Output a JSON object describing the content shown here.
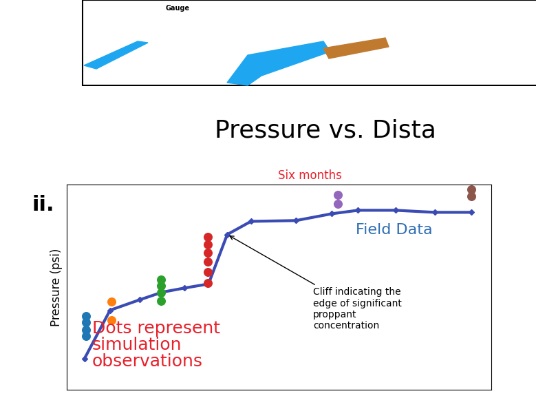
{
  "diagram": {
    "label": "Gauge"
  },
  "chart_data": {
    "type": "line",
    "title": "Pressure vs. Dista",
    "panel_label": "ii.",
    "subtitle": "Six months",
    "ylabel": "Pressure (psi)",
    "xlim": [
      0,
      100
    ],
    "ylim": [
      0,
      100
    ],
    "xticks": [],
    "yticks": [],
    "tick_labels": false,
    "grid": false,
    "series": [
      {
        "name": "Field Data",
        "type": "line",
        "color": "#3a4bb3",
        "marker": "diamond",
        "line_style": "solid",
        "x": [
          4.2,
          10.2,
          17.2,
          22.5,
          27.7,
          33.4,
          37.8,
          43.4,
          54.0,
          62.4,
          68.6,
          77.5,
          86.7,
          95.3
        ],
        "values": [
          15.4,
          38.9,
          44.0,
          47.7,
          49.7,
          51.7,
          75.8,
          82.2,
          82.6,
          85.9,
          87.6,
          87.6,
          86.6,
          86.6
        ]
      },
      {
        "type": "scatter",
        "color": "#1f77b4",
        "marker": "circle",
        "x": [
          4.5,
          4.5,
          4.5,
          4.5
        ],
        "values": [
          36.2,
          32.9,
          29.5,
          26.2
        ]
      },
      {
        "type": "scatter",
        "color": "#ff7f0e",
        "marker": "circle",
        "x": [
          10.5,
          10.5
        ],
        "values": [
          43.0,
          33.9
        ]
      },
      {
        "type": "scatter",
        "color": "#2ca02c",
        "marker": "circle",
        "x": [
          22.2,
          22.2,
          22.2,
          22.2
        ],
        "values": [
          54.0,
          50.7,
          47.3,
          43.3
        ]
      },
      {
        "type": "scatter",
        "color": "#d62728",
        "marker": "circle",
        "x": [
          33.2,
          33.2,
          33.2,
          33.2,
          33.2,
          33.2
        ],
        "values": [
          74.8,
          70.8,
          66.8,
          62.4,
          57.4,
          52.3
        ]
      },
      {
        "type": "scatter",
        "color": "#9467bd",
        "marker": "circle",
        "x": [
          63.9,
          63.9
        ],
        "values": [
          95.0,
          90.9
        ]
      },
      {
        "type": "scatter",
        "color": "#8c564b",
        "marker": "circle",
        "x": [
          95.3,
          95.3
        ],
        "values": [
          97.7,
          94.3
        ]
      }
    ],
    "annotations": [
      {
        "text": "Cliff indicating the\nedge of significant\nproppant\nconcentration",
        "color": "#000000"
      },
      {
        "text": "Dots represent\nsimulation\nobservations",
        "color": "#e8202a"
      },
      {
        "text": "Field Data",
        "color": "#2e6db4"
      }
    ]
  }
}
